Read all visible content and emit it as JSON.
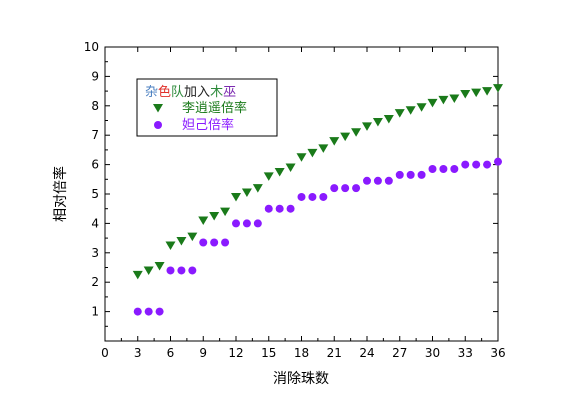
{
  "chart_data": {
    "type": "scatter",
    "xlabel": "消除珠数",
    "ylabel": "相对倍率",
    "xlim": [
      0,
      36
    ],
    "ylim": [
      0,
      10
    ],
    "xticks": [
      0,
      3,
      6,
      9,
      12,
      15,
      18,
      21,
      24,
      27,
      30,
      33,
      36
    ],
    "yticks": [
      1,
      2,
      3,
      4,
      5,
      6,
      7,
      8,
      9,
      10
    ],
    "grid": false,
    "legend_position": "top-left",
    "legend_title_parts": [
      {
        "text": "杂",
        "color": "#4a7fc0"
      },
      {
        "text": "色",
        "color": "#e0302a"
      },
      {
        "text": "队",
        "color": "#2e8b3c"
      },
      {
        "text": "加入",
        "color": "#222222"
      },
      {
        "text": "木",
        "color": "#2e8b3c"
      },
      {
        "text": "巫",
        "color": "#7b2ab0"
      }
    ],
    "series": [
      {
        "name": "李逍遥倍率",
        "marker": "triangle-down",
        "color": "#1a7a1a",
        "x": [
          3,
          4,
          5,
          6,
          7,
          8,
          9,
          10,
          11,
          12,
          13,
          14,
          15,
          16,
          17,
          18,
          19,
          20,
          21,
          22,
          23,
          24,
          25,
          26,
          27,
          28,
          29,
          30,
          31,
          32,
          33,
          34,
          35,
          36
        ],
        "y": [
          2.25,
          2.4,
          2.55,
          3.25,
          3.4,
          3.55,
          4.1,
          4.25,
          4.4,
          4.9,
          5.05,
          5.2,
          5.6,
          5.75,
          5.9,
          6.25,
          6.4,
          6.55,
          6.8,
          6.95,
          7.1,
          7.3,
          7.45,
          7.55,
          7.75,
          7.85,
          7.95,
          8.1,
          8.2,
          8.25,
          8.4,
          8.45,
          8.5,
          8.6
        ]
      },
      {
        "name": "妲己倍率",
        "marker": "circle",
        "color": "#8a1aff",
        "x": [
          3,
          4,
          5,
          6,
          7,
          8,
          9,
          10,
          11,
          12,
          13,
          14,
          15,
          16,
          17,
          18,
          19,
          20,
          21,
          22,
          23,
          24,
          25,
          26,
          27,
          28,
          29,
          30,
          31,
          32,
          33,
          34,
          35,
          36
        ],
        "y": [
          1,
          1,
          1,
          2.4,
          2.4,
          2.4,
          3.35,
          3.35,
          3.35,
          4,
          4,
          4,
          4.5,
          4.5,
          4.5,
          4.9,
          4.9,
          4.9,
          5.2,
          5.2,
          5.2,
          5.45,
          5.45,
          5.45,
          5.65,
          5.65,
          5.65,
          5.85,
          5.85,
          5.85,
          6,
          6,
          6,
          6.1
        ]
      }
    ]
  }
}
